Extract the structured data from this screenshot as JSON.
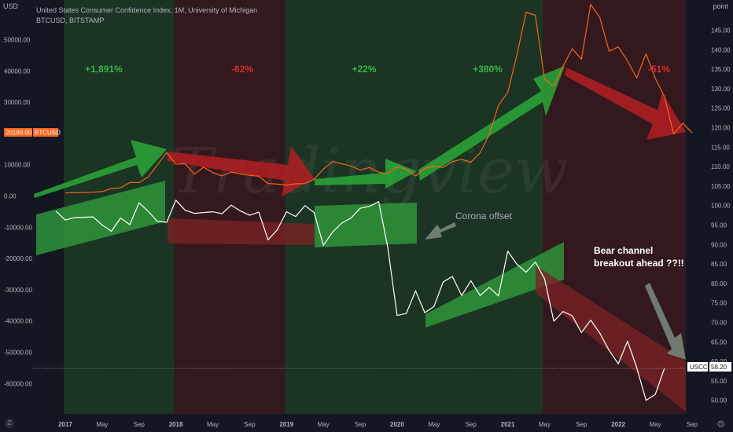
{
  "header": {
    "title": "United States Consumer Confidence Index, 1M, University of Michigan",
    "subtitle": "BTCUSD, BITSTAMP",
    "left_unit": "USD",
    "right_unit": "point"
  },
  "price_labels": {
    "btc_value": "20180.00",
    "btc_symbol": "BTCUSD",
    "uscci_symbol": "USCCI",
    "uscci_value": "58.20"
  },
  "annotations": {
    "pct_1": "+1,891%",
    "pct_2": "-62%",
    "pct_3": "+22%",
    "pct_4": "+380%",
    "pct_5": "-51%",
    "corona": "Corona offset",
    "bear_line1": "Bear channel",
    "bear_line2": "breakout ahead ??!!"
  },
  "colors": {
    "background": "#131722",
    "btc_line": "#f7631b",
    "uscci_line": "#ffffff",
    "green_zone": "#1d3a23",
    "red_zone": "#3a1a1c",
    "green_text": "#3bb34a",
    "red_text": "#d3302f",
    "green_arrow": "#2aa838",
    "red_arrow": "#b41f22",
    "grey_arrow": "#7c8c7d"
  },
  "chart_data": {
    "type": "line",
    "title": "United States Consumer Confidence Index, 1M, University of Michigan",
    "subtitle": "BTCUSD, BITSTAMP",
    "left_axis": {
      "unit": "USD",
      "ticks": [
        50000,
        40000,
        30000,
        20000,
        10000,
        0,
        -10000,
        -20000,
        -30000,
        -40000,
        -50000,
        -60000
      ],
      "tick_labels": [
        "50000.00",
        "40000.00",
        "30000.00",
        "20000.00",
        "10000.00",
        "0.00",
        "-10000.00",
        "-20000.00",
        "-30000.00",
        "-40000.00",
        "-50000.00",
        "-60000.00"
      ],
      "ylim": [
        -69000,
        61000
      ]
    },
    "right_axis": {
      "unit": "point",
      "ticks": [
        145,
        140,
        135,
        130,
        125,
        120,
        115,
        110,
        105,
        100,
        95,
        90,
        85,
        80,
        75,
        70,
        65,
        60,
        55,
        50
      ],
      "tick_labels": [
        "145.00",
        "140.00",
        "135.00",
        "130.00",
        "125.00",
        "120.00",
        "115.00",
        "110.00",
        "105.00",
        "100.00",
        "95.00",
        "90.00",
        "85.00",
        "80.00",
        "75.00",
        "70.00",
        "65.00",
        "60.00",
        "55.00",
        "50.00"
      ]
    },
    "x_axis": {
      "labels": [
        "2017",
        "May",
        "Sep",
        "2018",
        "May",
        "Sep",
        "2019",
        "May",
        "Sep",
        "2020",
        "May",
        "Sep",
        "2021",
        "May",
        "Sep",
        "2022",
        "May",
        "Sep"
      ],
      "months": [
        12,
        16,
        20,
        24,
        28,
        32,
        36,
        40,
        44,
        48,
        52,
        56,
        60,
        64,
        68,
        72,
        76,
        80
      ]
    },
    "series": [
      {
        "name": "BTCUSD",
        "axis": "left",
        "values": [
          970,
          1050,
          1100,
          1200,
          1400,
          2400,
          2600,
          4300,
          4300,
          6100,
          10000,
          13900,
          10200,
          10300,
          7000,
          9200,
          7500,
          6400,
          7700,
          7000,
          6600,
          6300,
          4000,
          3800,
          3500,
          3900,
          4000,
          5300,
          8600,
          11000,
          10300,
          9600,
          8300,
          9100,
          7600,
          7200,
          9300,
          8600,
          6400,
          8800,
          9500,
          9100,
          11000,
          11700,
          10800,
          13800,
          19700,
          29000,
          33100,
          45200,
          58800,
          57800,
          37300,
          35100,
          41500,
          47100,
          43800,
          61300,
          57000,
          46300,
          47700,
          43200,
          37800,
          45500,
          37700,
          31800,
          19800,
          23300,
          20180
        ],
        "x_start_month": 12
      },
      {
        "name": "USCCI",
        "axis": "right",
        "values": [
          98.5,
          96.3,
          96.9,
          97.0,
          97.1,
          95.0,
          93.4,
          96.8,
          95.1,
          100.7,
          98.5,
          95.9,
          95.7,
          101.4,
          98.8,
          98.0,
          98.2,
          98.4,
          97.9,
          100.1,
          98.6,
          97.5,
          98.3,
          91.2,
          93.8,
          98.4,
          97.2,
          100.0,
          98.2,
          89.8,
          93.2,
          95.5,
          96.8,
          99.3,
          99.8,
          101.0,
          89.1,
          71.8,
          72.3,
          78.1,
          72.5,
          74.1,
          80.4,
          81.8,
          76.9,
          80.7,
          76.9,
          79.0,
          76.8,
          88.3,
          84.9,
          82.9,
          85.5,
          81.2,
          70.3,
          72.8,
          71.7,
          67.4,
          70.6,
          67.2,
          62.8,
          59.4,
          65.2,
          58.4,
          50.0,
          51.5,
          58.2
        ],
        "x_start_month": 11
      }
    ],
    "shaded_zones": [
      {
        "from_month": 12,
        "to_month": 24,
        "type": "green",
        "label": "+1,891%"
      },
      {
        "from_month": 24,
        "to_month": 36,
        "type": "red",
        "label": "-62%"
      },
      {
        "from_month": 36,
        "to_month": 47,
        "type": "green",
        "label": "+22%"
      },
      {
        "from_month": 47,
        "to_month": 64,
        "type": "green",
        "label": "+380%"
      },
      {
        "from_month": 64,
        "to_month": 81,
        "type": "red",
        "label": "-51%"
      }
    ],
    "reference_line_value": 58.2,
    "legend": "none",
    "grid": false
  }
}
